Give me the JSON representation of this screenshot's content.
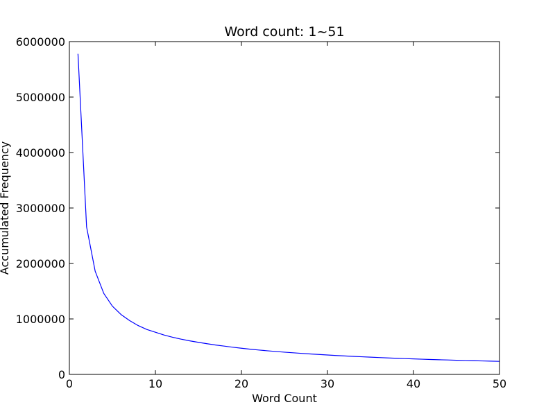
{
  "chart_data": {
    "type": "line",
    "title": "Word count: 1~51",
    "xlabel": "Word Count",
    "ylabel": "Accumulated Frequency",
    "xlim": [
      0,
      50
    ],
    "ylim": [
      0,
      6000000
    ],
    "xticks": [
      0,
      10,
      20,
      30,
      40,
      50
    ],
    "yticks": [
      0,
      1000000,
      2000000,
      3000000,
      4000000,
      5000000,
      6000000
    ],
    "grid": false,
    "line_color": "#0000ff",
    "series": [
      {
        "x": [
          1,
          2,
          3,
          4,
          5,
          6,
          7,
          8,
          9,
          10,
          11,
          12,
          13,
          14,
          15,
          16,
          17,
          18,
          19,
          20,
          21,
          22,
          23,
          24,
          25,
          26,
          27,
          28,
          29,
          30,
          31,
          32,
          33,
          34,
          35,
          36,
          37,
          38,
          39,
          40,
          41,
          42,
          43,
          44,
          45,
          46,
          47,
          48,
          49,
          50,
          51
        ],
        "y": [
          5780000,
          2660000,
          1860000,
          1460000,
          1230000,
          1080000,
          970000,
          880000,
          810000,
          760000,
          710000,
          670000,
          635000,
          605000,
          578000,
          553000,
          530000,
          510000,
          490000,
          472000,
          455000,
          440000,
          426000,
          413000,
          401000,
          390000,
          379000,
          369000,
          359000,
          350000,
          341000,
          333000,
          325000,
          318000,
          311000,
          304000,
          297000,
          291000,
          285000,
          280000,
          274000,
          269000,
          264000,
          260000,
          255000,
          251000,
          247000,
          243000,
          239000,
          235000,
          232000
        ]
      }
    ]
  }
}
